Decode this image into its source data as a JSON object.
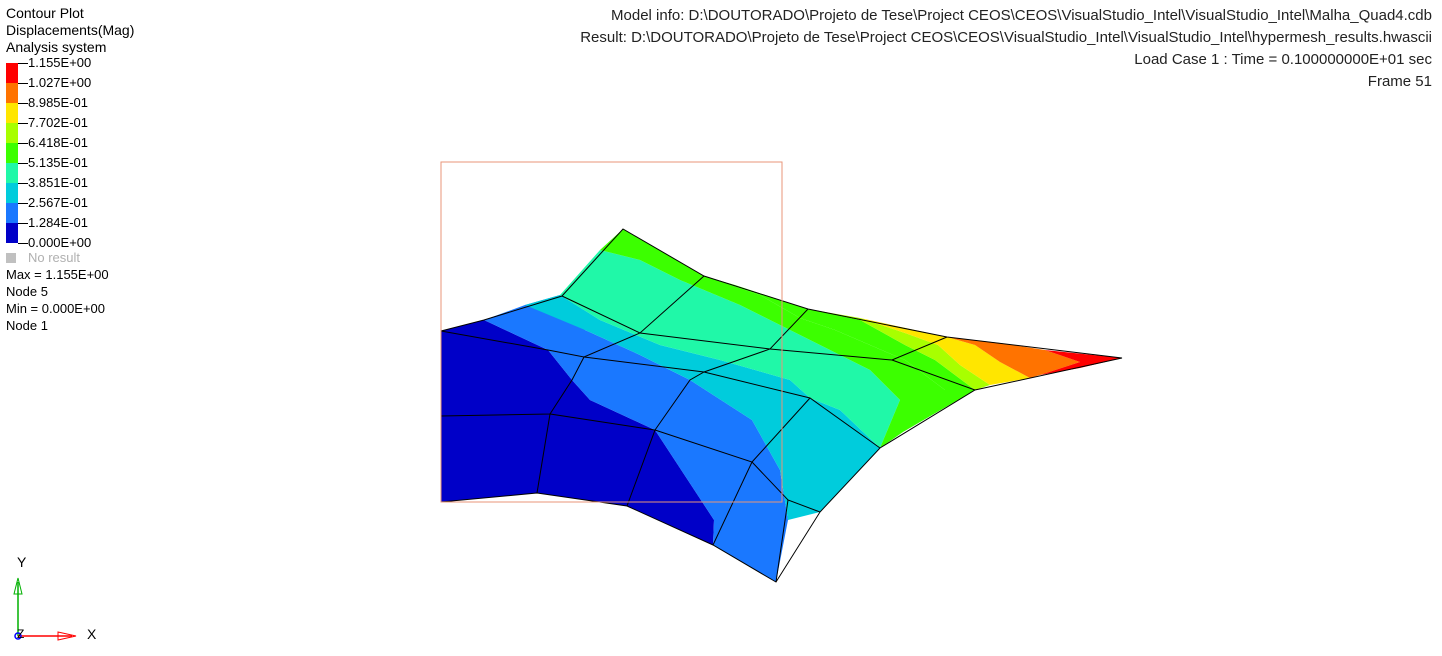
{
  "legend": {
    "title": "Contour Plot",
    "subtitle": "Displacements(Mag)",
    "system": "Analysis system",
    "levels": [
      {
        "label": "1.155E+00",
        "color": "#ff0000"
      },
      {
        "label": "1.027E+00",
        "color": "#ff7300"
      },
      {
        "label": "8.985E-01",
        "color": "#ffe600"
      },
      {
        "label": "7.702E-01",
        "color": "#a8ff00"
      },
      {
        "label": "6.418E-01",
        "color": "#3cff00"
      },
      {
        "label": "5.135E-01",
        "color": "#20f8a8"
      },
      {
        "label": "3.851E-01",
        "color": "#00ccdc"
      },
      {
        "label": "2.567E-01",
        "color": "#1a78ff"
      },
      {
        "label": "1.284E-01",
        "color": "#0000c8"
      },
      {
        "label": "0.000E+00",
        "color": ""
      }
    ],
    "no_result": "No result",
    "max_label": "Max = 1.155E+00",
    "max_node": "Node 5",
    "min_label": "Min = 0.000E+00",
    "min_node": "Node 1"
  },
  "info": {
    "model": "Model info: D:\\DOUTORADO\\Projeto de Tese\\Project CEOS\\CEOS\\VisualStudio_Intel\\VisualStudio_Intel\\Malha_Quad4.cdb",
    "result": "Result: D:\\DOUTORADO\\Projeto de Tese\\Project CEOS\\CEOS\\VisualStudio_Intel\\VisualStudio_Intel\\hypermesh_results.hwascii",
    "load_case": "Load Case 1  : Time = 0.100000000E+01 sec",
    "frame": "Frame 51"
  },
  "triad": {
    "y": "Y",
    "x": "X",
    "z": "Z"
  },
  "colors": {
    "mesh_edge": "#000000",
    "bounding_box": "#e8967a",
    "triad_x": "#ff0000",
    "triad_y": "#00b000",
    "triad_z": "#0000ff"
  }
}
